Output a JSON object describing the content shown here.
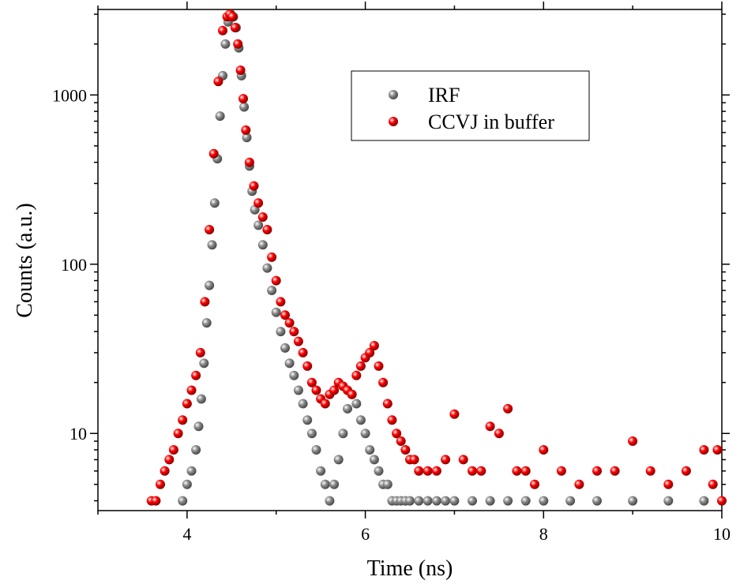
{
  "chart_data": {
    "type": "scatter",
    "xlabel": "Time (ns)",
    "ylabel": "Counts (a.u.)",
    "xlim": [
      3.0,
      10.0
    ],
    "ylim": [
      3.5,
      3200
    ],
    "yscale": "log",
    "xticks": [
      4,
      6,
      8,
      10
    ],
    "yticks": [
      10,
      100,
      1000
    ],
    "ytick_labels": [
      "10",
      "100",
      "1000"
    ],
    "legend_position": "top-right",
    "series": [
      {
        "name": "IRF",
        "color": "#8c8c8c",
        "x": [
          3.95,
          4.0,
          4.05,
          4.1,
          4.13,
          4.16,
          4.19,
          4.22,
          4.25,
          4.28,
          4.31,
          4.34,
          4.37,
          4.4,
          4.43,
          4.46,
          4.49,
          4.52,
          4.55,
          4.58,
          4.61,
          4.64,
          4.67,
          4.7,
          4.73,
          4.76,
          4.8,
          4.85,
          4.9,
          4.95,
          5.0,
          5.05,
          5.1,
          5.15,
          5.2,
          5.25,
          5.3,
          5.35,
          5.4,
          5.45,
          5.5,
          5.55,
          5.6,
          5.65,
          5.7,
          5.75,
          5.8,
          5.85,
          5.9,
          5.95,
          6.0,
          6.05,
          6.1,
          6.15,
          6.2,
          6.25,
          6.3,
          6.35,
          6.4,
          6.45,
          6.5,
          6.6,
          6.7,
          6.8,
          6.9,
          7.0,
          7.2,
          7.4,
          7.6,
          7.8,
          8.0,
          8.3,
          8.6,
          9.0,
          9.4,
          9.8
        ],
        "values": [
          4,
          5,
          6,
          8,
          11,
          16,
          26,
          45,
          75,
          130,
          230,
          420,
          750,
          1300,
          2000,
          2700,
          3000,
          2900,
          2500,
          1900,
          1300,
          850,
          560,
          380,
          270,
          210,
          170,
          130,
          95,
          70,
          52,
          40,
          32,
          26,
          22,
          18,
          15,
          12,
          10,
          8,
          6,
          5,
          4,
          5,
          7,
          10,
          14,
          17,
          15,
          12,
          10,
          8,
          7,
          6,
          5,
          5,
          4,
          4,
          4,
          4,
          4,
          4,
          4,
          4,
          4,
          4,
          4,
          4,
          4,
          4,
          4,
          4,
          4,
          4,
          4,
          4
        ]
      },
      {
        "name": "CCVJ in buffer",
        "color": "#ff0000",
        "x": [
          3.6,
          3.65,
          3.7,
          3.75,
          3.8,
          3.85,
          3.9,
          3.95,
          4.0,
          4.05,
          4.1,
          4.15,
          4.2,
          4.25,
          4.3,
          4.35,
          4.4,
          4.45,
          4.48,
          4.51,
          4.54,
          4.57,
          4.6,
          4.63,
          4.66,
          4.7,
          4.75,
          4.8,
          4.85,
          4.9,
          4.95,
          5.0,
          5.05,
          5.1,
          5.15,
          5.2,
          5.25,
          5.3,
          5.35,
          5.4,
          5.45,
          5.5,
          5.55,
          5.6,
          5.65,
          5.7,
          5.75,
          5.8,
          5.85,
          5.9,
          5.95,
          6.0,
          6.05,
          6.1,
          6.15,
          6.2,
          6.25,
          6.3,
          6.35,
          6.4,
          6.45,
          6.5,
          6.55,
          6.6,
          6.7,
          6.8,
          6.9,
          7.0,
          7.1,
          7.2,
          7.3,
          7.4,
          7.5,
          7.6,
          7.7,
          7.8,
          7.9,
          8.0,
          8.2,
          8.4,
          8.6,
          8.8,
          9.0,
          9.2,
          9.4,
          9.6,
          9.8,
          9.9,
          9.95,
          10.0
        ],
        "values": [
          4,
          4,
          5,
          6,
          7,
          8,
          10,
          12,
          15,
          18,
          22,
          30,
          60,
          160,
          450,
          1200,
          2400,
          2900,
          3000,
          2900,
          2500,
          2000,
          1400,
          950,
          620,
          400,
          290,
          230,
          190,
          160,
          110,
          80,
          60,
          50,
          45,
          40,
          35,
          30,
          25,
          20,
          18,
          16,
          15,
          17,
          18,
          20,
          19,
          18,
          17,
          22,
          25,
          28,
          30,
          33,
          25,
          20,
          15,
          12,
          10,
          9,
          8,
          7,
          7,
          6,
          6,
          6,
          7,
          13,
          7,
          6,
          6,
          11,
          10,
          14,
          6,
          6,
          5,
          8,
          6,
          5,
          6,
          6,
          9,
          6,
          5,
          6,
          8,
          5,
          8,
          4
        ]
      }
    ]
  }
}
